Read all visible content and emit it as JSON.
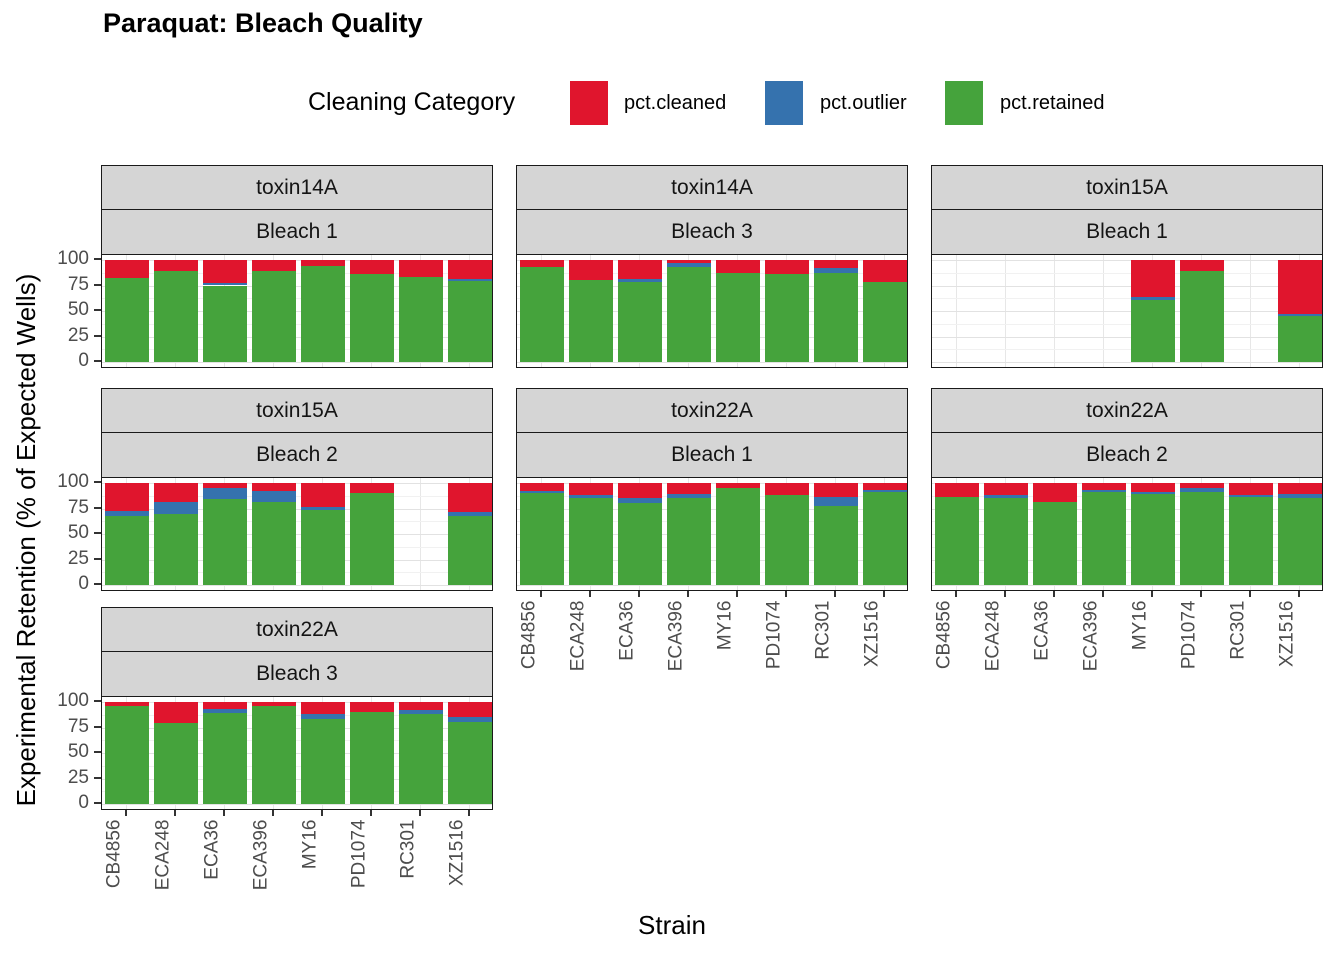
{
  "title": "Paraquat: Bleach Quality",
  "legend": {
    "title": "Cleaning Category",
    "items": [
      {
        "label": "pct.cleaned",
        "color": "#e0152d"
      },
      {
        "label": "pct.outlier",
        "color": "#3572ae"
      },
      {
        "label": "pct.retained",
        "color": "#45a33c"
      }
    ]
  },
  "axes": {
    "x_title": "Strain",
    "y_title": "Experimental Retention (% of Expected Wells)",
    "y_ticks": [
      100,
      75,
      50,
      25,
      0
    ]
  },
  "chart_data": {
    "type": "bar",
    "stacked": true,
    "categories": [
      "CB4856",
      "ECA248",
      "ECA36",
      "ECA396",
      "MY16",
      "PD1074",
      "RC301",
      "XZ1516"
    ],
    "ylim": [
      0,
      100
    ],
    "grid": "on",
    "legend_position": "top",
    "stack_order_bottom_to_top": [
      "pct.retained",
      "pct.outlier",
      "pct.cleaned"
    ],
    "colors": {
      "pct.cleaned": "#e0152d",
      "pct.outlier": "#3572ae",
      "pct.retained": "#45a33c"
    },
    "facets": [
      {
        "toxin": "toxin14A",
        "bleach": "Bleach 1",
        "row": 0,
        "col": 0,
        "values": {
          "pct.retained": [
            82,
            89,
            75,
            89,
            94,
            86,
            83,
            79
          ],
          "pct.outlier": [
            0,
            0,
            2,
            0,
            0,
            0,
            0,
            2
          ],
          "pct.cleaned": [
            18,
            11,
            23,
            11,
            6,
            14,
            17,
            19
          ]
        }
      },
      {
        "toxin": "toxin14A",
        "bleach": "Bleach 3",
        "row": 0,
        "col": 1,
        "values": {
          "pct.retained": [
            93,
            80,
            78,
            93,
            87,
            86,
            87,
            78
          ],
          "pct.outlier": [
            0,
            0,
            3,
            4,
            0,
            0,
            5,
            0
          ],
          "pct.cleaned": [
            7,
            20,
            19,
            3,
            13,
            14,
            8,
            22
          ]
        }
      },
      {
        "toxin": "toxin15A",
        "bleach": "Bleach 1",
        "row": 0,
        "col": 2,
        "values": {
          "pct.retained": [
            null,
            null,
            null,
            null,
            61,
            89,
            null,
            45
          ],
          "pct.outlier": [
            null,
            null,
            null,
            null,
            3,
            0,
            null,
            2
          ],
          "pct.cleaned": [
            null,
            null,
            null,
            null,
            36,
            11,
            null,
            53
          ]
        }
      },
      {
        "toxin": "toxin15A",
        "bleach": "Bleach 2",
        "row": 1,
        "col": 0,
        "values": {
          "pct.retained": [
            68,
            70,
            84,
            81,
            74,
            90,
            null,
            68
          ],
          "pct.outlier": [
            5,
            11,
            11,
            11,
            2,
            0,
            null,
            4
          ],
          "pct.cleaned": [
            27,
            19,
            5,
            8,
            24,
            10,
            null,
            28
          ]
        }
      },
      {
        "toxin": "toxin22A",
        "bleach": "Bleach 1",
        "row": 1,
        "col": 1,
        "values": {
          "pct.retained": [
            90,
            85,
            80,
            85,
            95,
            88,
            77,
            91
          ],
          "pct.outlier": [
            2,
            3,
            5,
            4,
            0,
            0,
            9,
            2
          ],
          "pct.cleaned": [
            8,
            12,
            15,
            11,
            5,
            12,
            14,
            7
          ]
        }
      },
      {
        "toxin": "toxin22A",
        "bleach": "Bleach 2",
        "row": 1,
        "col": 2,
        "values": {
          "pct.retained": [
            86,
            85,
            81,
            91,
            89,
            91,
            86,
            85
          ],
          "pct.outlier": [
            0,
            3,
            0,
            2,
            2,
            4,
            2,
            4
          ],
          "pct.cleaned": [
            14,
            12,
            19,
            7,
            9,
            5,
            12,
            11
          ]
        }
      },
      {
        "toxin": "toxin22A",
        "bleach": "Bleach 3",
        "row": 2,
        "col": 0,
        "values": {
          "pct.retained": [
            96,
            79,
            89,
            96,
            83,
            90,
            88,
            80
          ],
          "pct.outlier": [
            0,
            0,
            4,
            0,
            5,
            0,
            4,
            5
          ],
          "pct.cleaned": [
            4,
            21,
            7,
            4,
            12,
            10,
            8,
            15
          ]
        }
      }
    ]
  }
}
